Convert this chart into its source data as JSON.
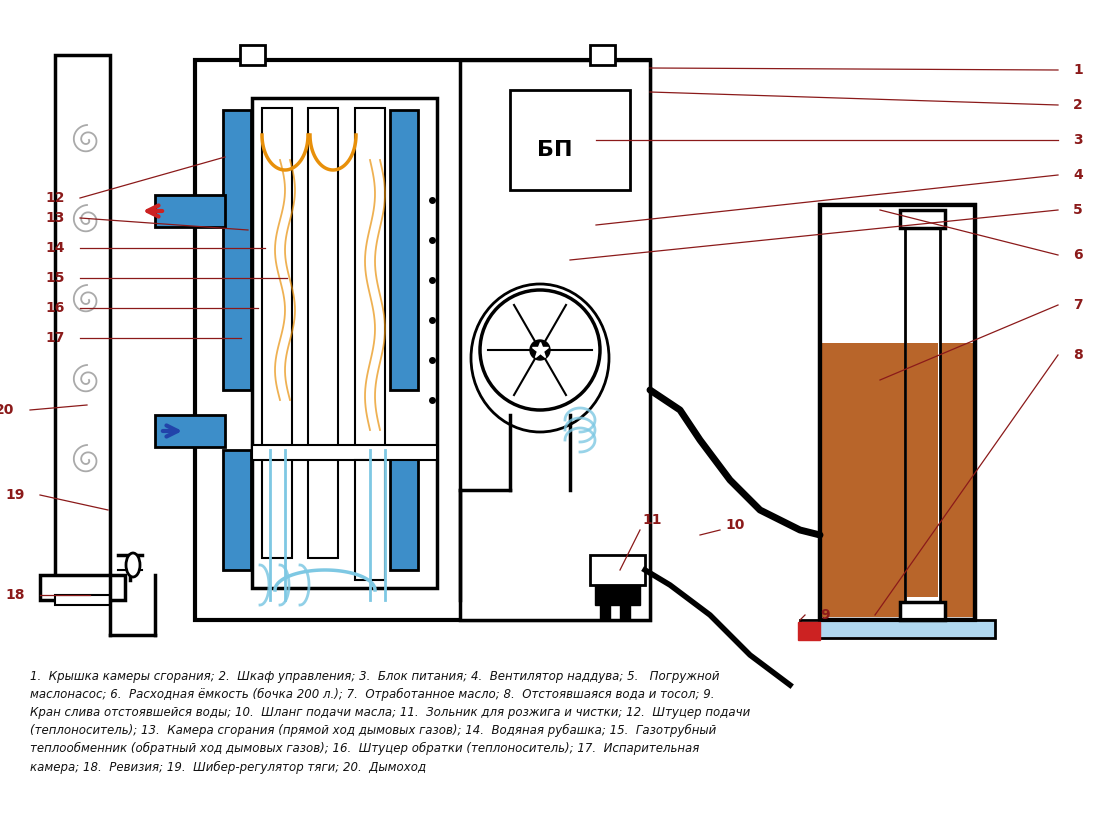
{
  "bg_color": "#ffffff",
  "lc": "#000000",
  "blue": "#3d8ec9",
  "orange": "#e8900a",
  "lblue": "#7ec8e3",
  "brown": "#b8652a",
  "gray": "#aaaaaa",
  "red": "#cc2222",
  "dblue": "#2244aa",
  "labc": "#8b1a1a",
  "bp_label": "БП",
  "caption": "1.  Крышка камеры сгорания; 2.  Шкаф управления; 3.  Блок питания; 4.  Вентилятор наддува; 5.   Погружной\nмаслонасос; 6.  Расходная ёмкость (бочка 200 л.); 7.  Отработанное масло; 8.  Отстоявшаяся вода и тосол; 9.\nКран слива отстоявшейся воды; 10.  Шланг подачи масла; 11.  Зольник для розжига и чистки; 12.  Штуцер подачи\n(теплоноситель); 13.  Камера сгорания (прямой ход дымовых газов); 14.  Водяная рубашка; 15.  Газотрубный\nтеплообменник (обратный ход дымовых газов); 16.  Штуцер обратки (теплоноситель); 17.  Испарительная\nкамера; 18.  Ревизия; 19.  Шибер-регулятор тяги; 20.  Дымоход"
}
